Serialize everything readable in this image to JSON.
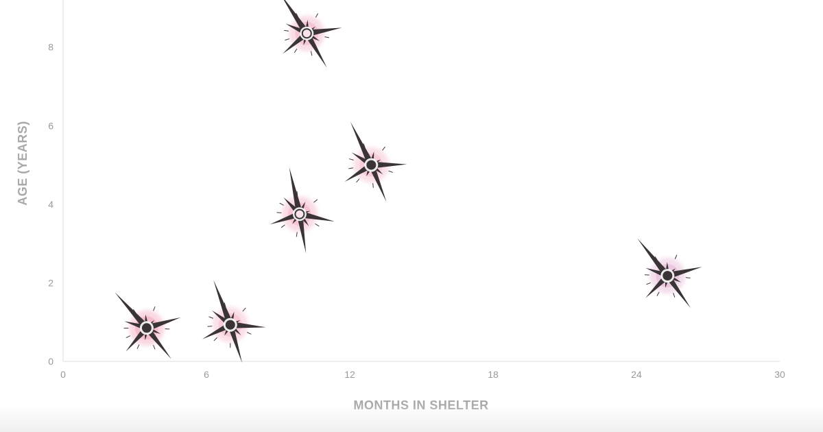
{
  "chart_data": {
    "type": "scatter",
    "title": "",
    "xlabel": "MONTHS IN SHELTER",
    "ylabel": "AGE (YEARS)",
    "xlim": [
      0,
      30
    ],
    "ylim": [
      0,
      9.2
    ],
    "x_ticks": [
      0,
      6,
      12,
      18,
      24,
      30
    ],
    "y_ticks": [
      0,
      2,
      4,
      6,
      8
    ],
    "grid": false,
    "legend": "none",
    "points": [
      {
        "x": 3.5,
        "y": 0.85,
        "center": "filled",
        "halo": "#f6b8c8"
      },
      {
        "x": 7.0,
        "y": 0.93,
        "center": "filled",
        "halo": "#f7c6d3"
      },
      {
        "x": 10.2,
        "y": 8.35,
        "center": "hollow",
        "halo": "#f3c1d2"
      },
      {
        "x": 9.9,
        "y": 3.75,
        "center": "hollow",
        "halo": "#f6bfcf"
      },
      {
        "x": 12.9,
        "y": 5.0,
        "center": "filled",
        "halo": "#f8c7d4"
      },
      {
        "x": 25.3,
        "y": 2.18,
        "center": "filled",
        "halo": "#e9c3dc"
      }
    ]
  },
  "colors": {
    "axis": "#e9e9e9",
    "tick_text": "#9a9a9a",
    "axis_title": "#a9a9a9",
    "star": "#3b3436"
  }
}
